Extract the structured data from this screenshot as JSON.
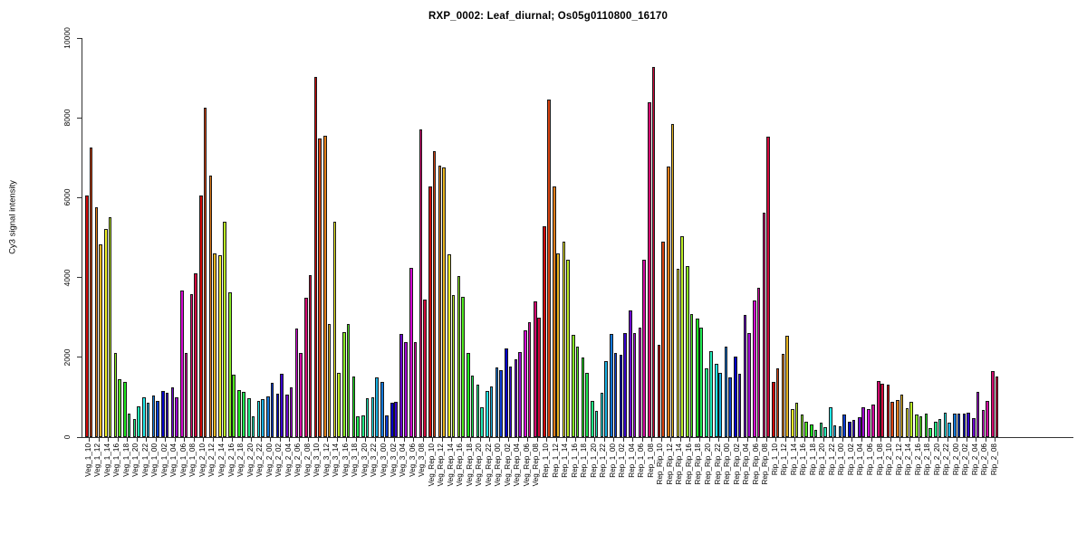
{
  "title": "RXP_0002: Leaf_diurnal; Os05g0110800_16170",
  "chart_data": {
    "type": "bar",
    "title": "RXP_0002: Leaf_diurnal; Os05g0110800_16170",
    "xlabel": "",
    "ylabel": "Cy3 signal intensity",
    "ylim": [
      0,
      10000
    ],
    "yticks": [
      0,
      2000,
      4000,
      6000,
      8000,
      10000
    ],
    "grid": false,
    "legend_position": "none",
    "bars_per_category": 2,
    "groups": [
      "Veg_1",
      "Veg_2",
      "Veg_3",
      "Veg_Rep",
      "Rep_1",
      "Rep_Rip",
      "Rip_1",
      "Rip_2"
    ],
    "timepoints": [
      "10",
      "12",
      "14",
      "16",
      "18",
      "20",
      "22",
      "00",
      "02",
      "04",
      "06",
      "08"
    ],
    "palette_rainbow24": [
      "#FF0000",
      "#FF4000",
      "#FF8000",
      "#FFBF00",
      "#FFFF00",
      "#BFFF00",
      "#80FF00",
      "#40FF00",
      "#00FF00",
      "#00FF40",
      "#00FF80",
      "#00FFBF",
      "#00FFFF",
      "#00BFFF",
      "#0080FF",
      "#0040FF",
      "#0000FF",
      "#4000FF",
      "#8000FF",
      "#BF00FF",
      "#FF00FF",
      "#FF00BF",
      "#FF0080",
      "#FF0040"
    ],
    "categories": [
      "Veg_1_10",
      "Veg_1_12",
      "Veg_1_14",
      "Veg_1_16",
      "Veg_1_18",
      "Veg_1_20",
      "Veg_1_22",
      "Veg_1_00",
      "Veg_1_02",
      "Veg_1_04",
      "Veg_1_06",
      "Veg_1_08",
      "Veg_2_10",
      "Veg_2_12",
      "Veg_2_14",
      "Veg_2_16",
      "Veg_2_18",
      "Veg_2_20",
      "Veg_2_22",
      "Veg_2_00",
      "Veg_2_02",
      "Veg_2_04",
      "Veg_2_06",
      "Veg_2_08",
      "Veg_3_10",
      "Veg_3_12",
      "Veg_3_14",
      "Veg_3_16",
      "Veg_3_18",
      "Veg_3_20",
      "Veg_3_22",
      "Veg_3_00",
      "Veg_3_02",
      "Veg_3_04",
      "Veg_3_06",
      "Veg_3_08",
      "Veg_Rep_10",
      "Veg_Rep_12",
      "Veg_Rep_14",
      "Veg_Rep_16",
      "Veg_Rep_18",
      "Veg_Rep_20",
      "Veg_Rep_22",
      "Veg_Rep_00",
      "Veg_Rep_02",
      "Veg_Rep_04",
      "Veg_Rep_06",
      "Veg_Rep_08",
      "Rep_1_10",
      "Rep_1_12",
      "Rep_1_14",
      "Rep_1_16",
      "Rep_1_18",
      "Rep_1_20",
      "Rep_1_22",
      "Rep_1_00",
      "Rep_1_02",
      "Rep_1_04",
      "Rep_1_06",
      "Rep_1_08",
      "Rep_Rip_10",
      "Rep_Rip_12",
      "Rep_Rip_14",
      "Rep_Rip_16",
      "Rep_Rip_18",
      "Rep_Rip_20",
      "Rep_Rip_22",
      "Rep_Rip_00",
      "Rep_Rip_02",
      "Rep_Rip_04",
      "Rep_Rip_06",
      "Rep_Rip_08",
      "Rip_1_10",
      "Rip_1_12",
      "Rip_1_14",
      "Rip_1_16",
      "Rip_1_18",
      "Rip_1_20",
      "Rip_1_22",
      "Rip_1_00",
      "Rip_1_02",
      "Rip_1_04",
      "Rip_1_06",
      "Rip_1_08",
      "Rip_2_10",
      "Rip_2_12",
      "Rip_2_14",
      "Rip_2_16",
      "Rip_2_18",
      "Rip_2_20",
      "Rip_2_22",
      "Rip_2_00",
      "Rip_2_02",
      "Rip_2_04",
      "Rip_2_06",
      "Rip_2_08"
    ],
    "values": [
      [
        6050,
        7250
      ],
      [
        5750,
        4820
      ],
      [
        5210,
        5500
      ],
      [
        2120,
        1450
      ],
      [
        1390,
        600
      ],
      [
        450,
        780
      ],
      [
        1000,
        870
      ],
      [
        1040,
        900
      ],
      [
        1160,
        1100
      ],
      [
        1250,
        1000
      ],
      [
        3670,
        2100
      ],
      [
        3580,
        4100
      ],
      [
        6050,
        8250
      ],
      [
        6560,
        4600
      ],
      [
        4560,
        5390
      ],
      [
        3630,
        1560
      ],
      [
        1180,
        1140
      ],
      [
        975,
        530
      ],
      [
        906,
        944
      ],
      [
        1010,
        1360
      ],
      [
        1090,
        1590
      ],
      [
        1060,
        1250
      ],
      [
        2720,
        2120
      ],
      [
        3490,
        4060
      ],
      [
        9030,
        7490
      ],
      [
        7550,
        2830
      ],
      [
        5390,
        1620
      ],
      [
        2630,
        2840
      ],
      [
        1510,
        530
      ],
      [
        545,
        980
      ],
      [
        1000,
        1500
      ],
      [
        1380,
        545
      ],
      [
        865,
        880
      ],
      [
        2590,
        2380
      ],
      [
        4250,
        2390
      ],
      [
        7720,
        3450
      ],
      [
        6280,
        7160
      ],
      [
        6810,
        6755
      ],
      [
        4570,
        3570
      ],
      [
        4030,
        3520
      ],
      [
        2110,
        1540
      ],
      [
        1315,
        750
      ],
      [
        1165,
        1265
      ],
      [
        1745,
        1670
      ],
      [
        2220,
        1768
      ],
      [
        1950,
        2140
      ],
      [
        2670,
        2890
      ],
      [
        3400,
        2985
      ],
      [
        5280,
        8450
      ],
      [
        6270,
        4610
      ],
      [
        4905,
        4450
      ],
      [
        2560,
        2260
      ],
      [
        1990,
        1620
      ],
      [
        900,
        650
      ],
      [
        1100,
        1900
      ],
      [
        2580,
        2100
      ],
      [
        2060,
        2600
      ],
      [
        3180,
        2600
      ],
      [
        2750,
        4450
      ],
      [
        8380,
        9275
      ],
      [
        2320,
        4905
      ],
      [
        6780,
        7840
      ],
      [
        4210,
        5040
      ],
      [
        4290,
        3080
      ],
      [
        2980,
        2740
      ],
      [
        1720,
        2150
      ],
      [
        1845,
        1620
      ],
      [
        2260,
        1495
      ],
      [
        2025,
        1585
      ],
      [
        3060,
        2605
      ],
      [
        3415,
        3740
      ],
      [
        5620,
        7530
      ],
      [
        1385,
        1715
      ],
      [
        2085,
        2530
      ],
      [
        710,
        860
      ],
      [
        575,
        380
      ],
      [
        325,
        180
      ],
      [
        365,
        250
      ],
      [
        745,
        300
      ],
      [
        278,
        560
      ],
      [
        385,
        420
      ],
      [
        505,
        750
      ],
      [
        695,
        815
      ],
      [
        1410,
        1340
      ],
      [
        1310,
        890
      ],
      [
        940,
        1075
      ],
      [
        735,
        885
      ],
      [
        565,
        520
      ],
      [
        590,
        220
      ],
      [
        390,
        450
      ],
      [
        612,
        356
      ],
      [
        585,
        590
      ],
      [
        585,
        610
      ],
      [
        485,
        1125
      ],
      [
        690,
        900
      ],
      [
        1655,
        1520
      ]
    ]
  }
}
